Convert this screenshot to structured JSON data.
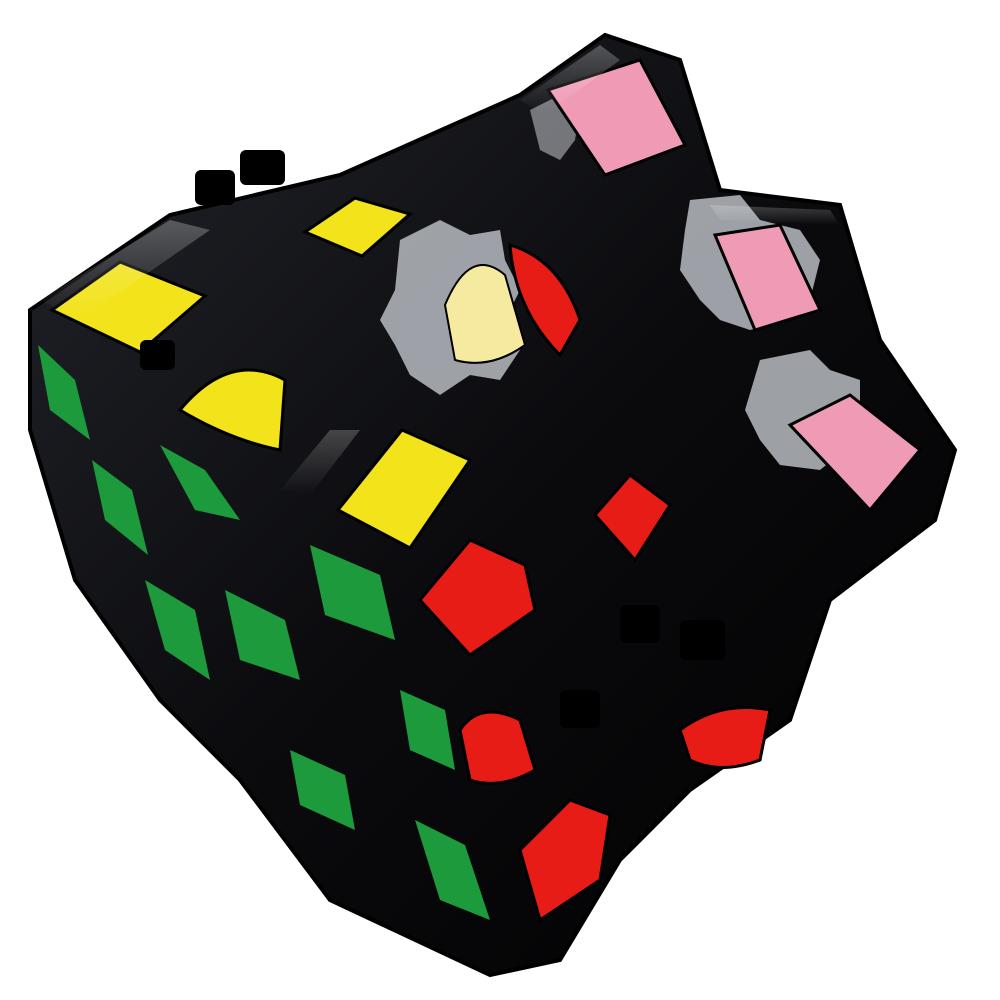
{
  "image": {
    "subject": "gear-cube",
    "background_color": "#ffffff"
  },
  "cube": {
    "body_color": "#0b0b0e",
    "highlight_color": "#3a3d45",
    "faces": {
      "top": {
        "sticker_color": "#f2e31a",
        "light_sticker_color": "#f5eaa0"
      },
      "left": {
        "sticker_color": "#1d9a3c"
      },
      "front": {
        "sticker_color": "#e81c17"
      },
      "right": {
        "sticker_color": "#f09bb6"
      }
    },
    "gear_plastic_color": "#b9bcc2"
  }
}
